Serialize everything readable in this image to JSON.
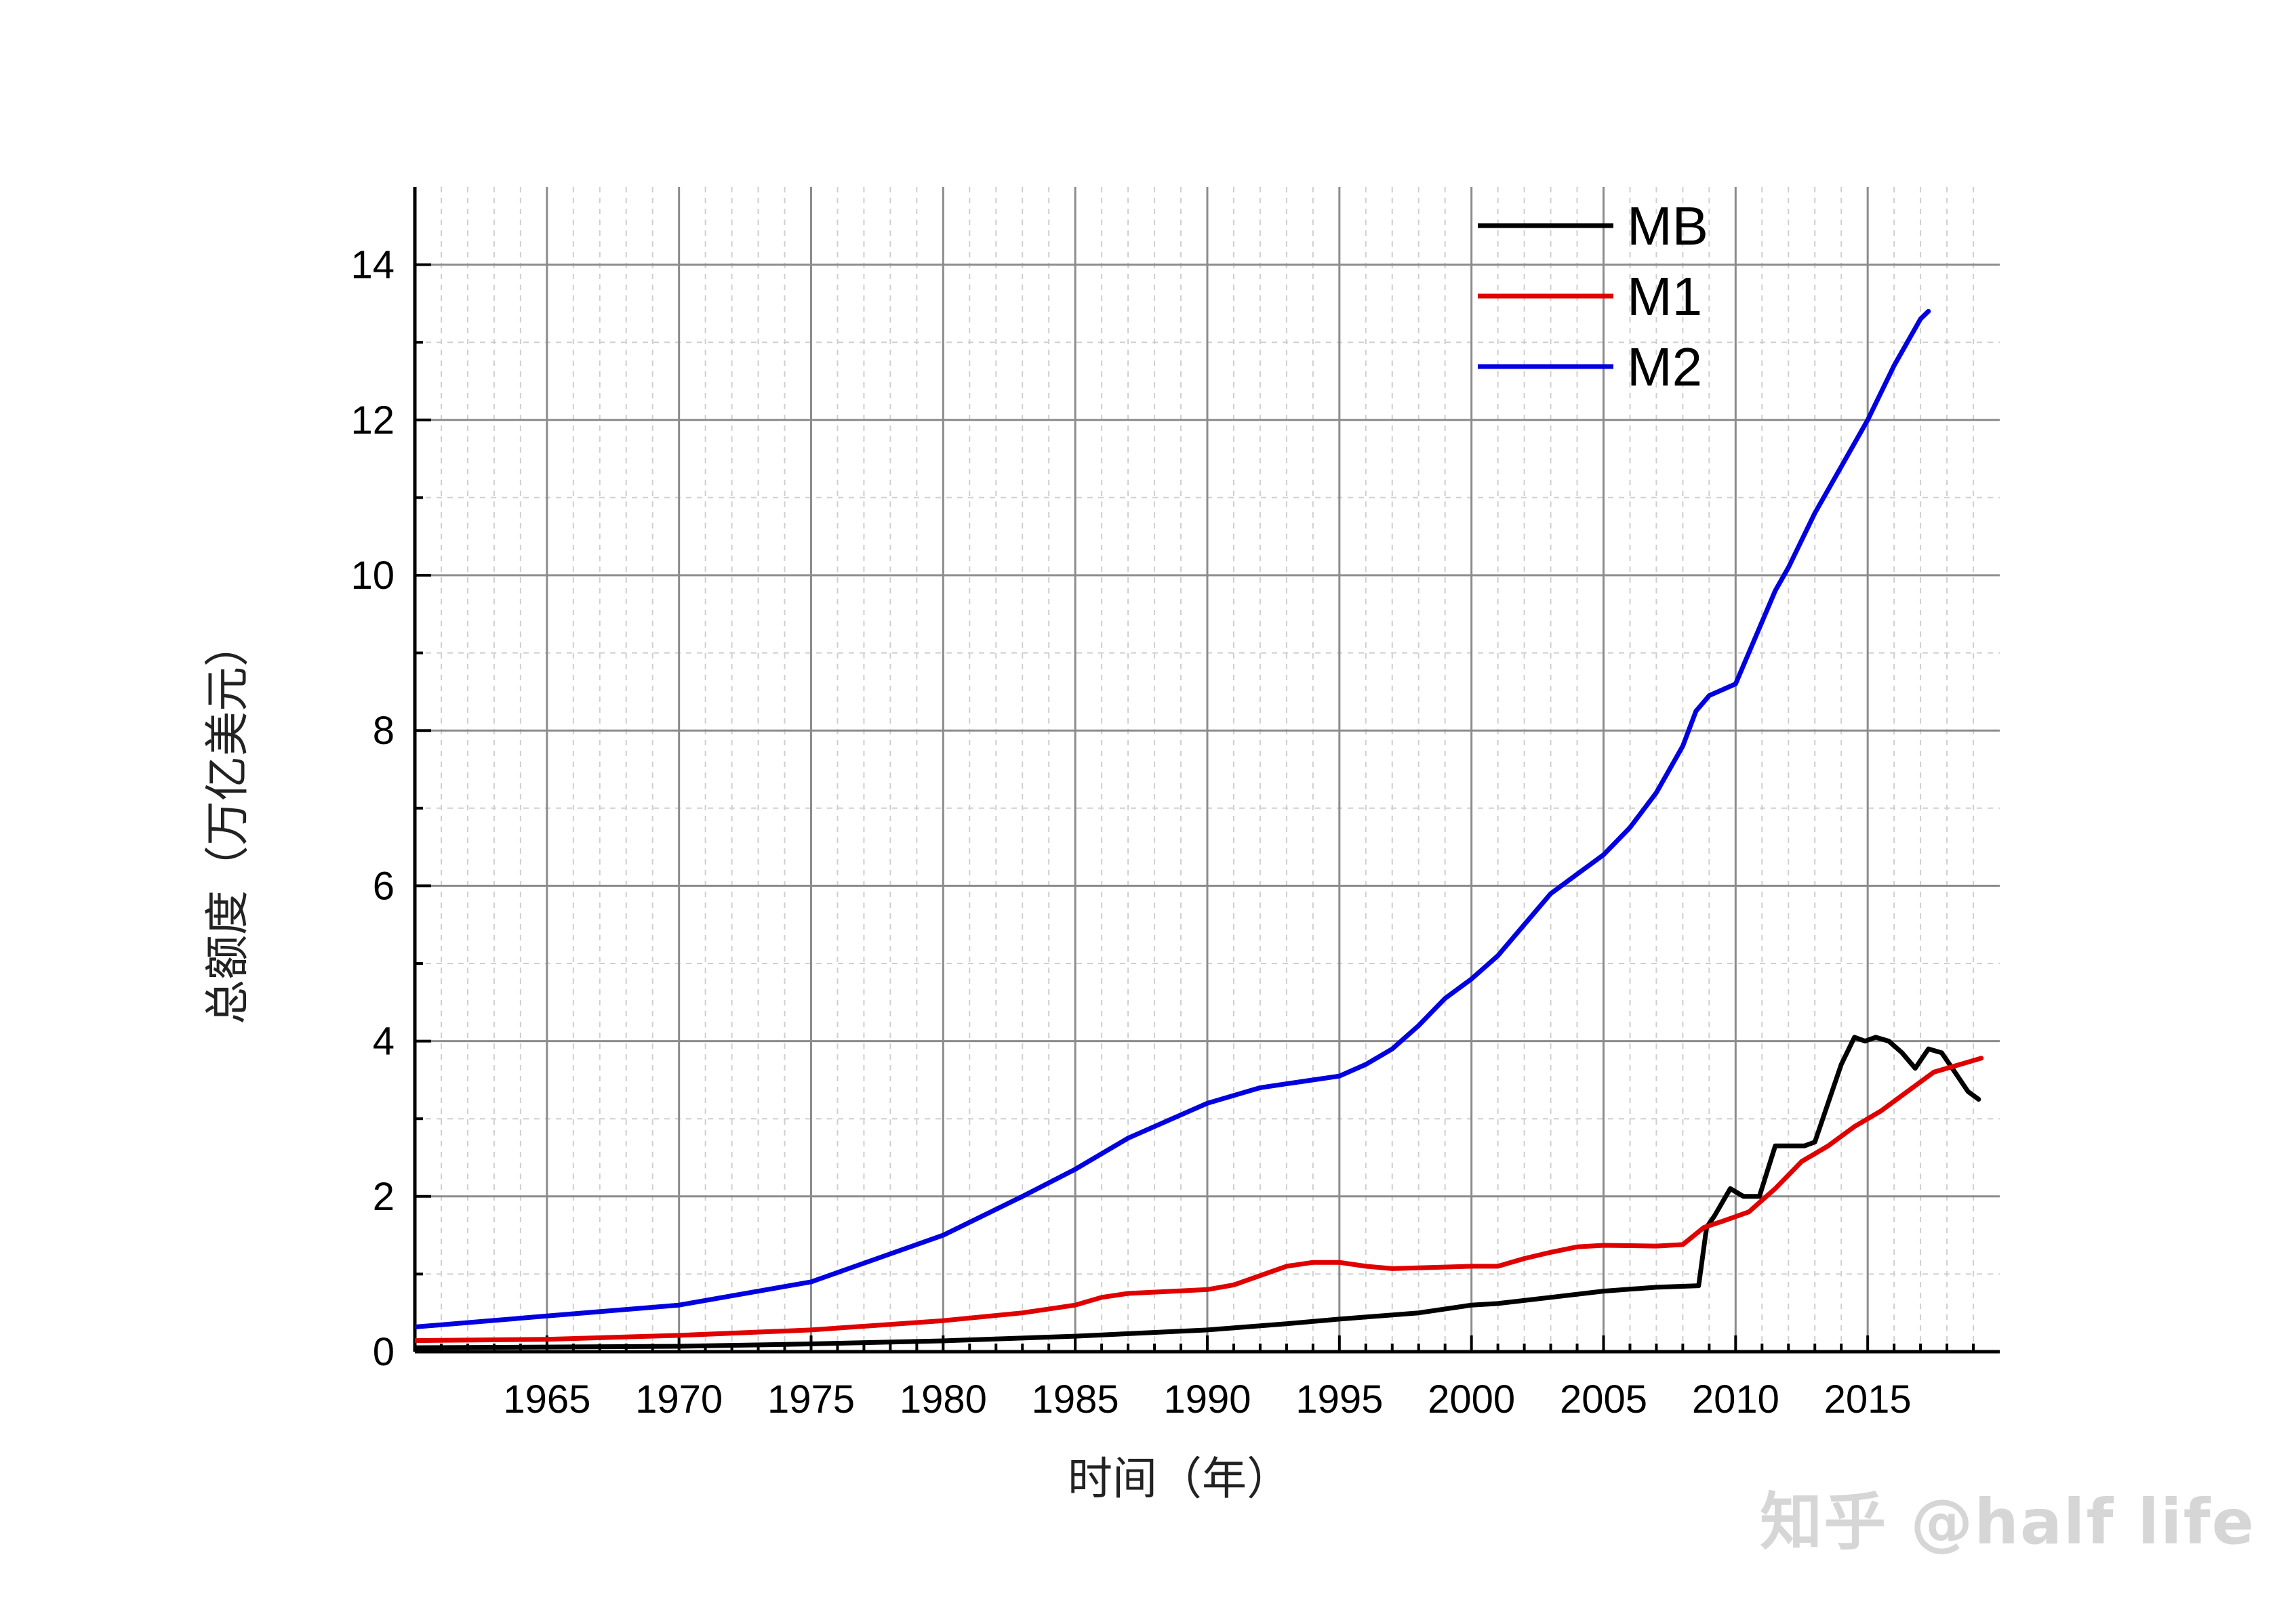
{
  "chart_data": {
    "type": "line",
    "xlabel": "时间（年）",
    "ylabel": "总额度（万亿美元）",
    "xlim": [
      1960,
      2020
    ],
    "ylim": [
      0,
      15
    ],
    "x_ticks": [
      1965,
      1970,
      1975,
      1980,
      1985,
      1990,
      1995,
      2000,
      2005,
      2010,
      2015
    ],
    "y_ticks": [
      0,
      2,
      4,
      6,
      8,
      10,
      12,
      14
    ],
    "grid": true,
    "legend_position": "top-right",
    "series": [
      {
        "name": "MB",
        "color": "#000000",
        "x": [
          1959,
          1965,
          1970,
          1975,
          1980,
          1985,
          1990,
          1993,
          1995,
          1998,
          2000,
          2001,
          2003,
          2005,
          2007,
          2008.6,
          2008.9,
          2009.2,
          2009.8,
          2010.3,
          2010.9,
          2011.5,
          2012,
          2012.6,
          2013,
          2013.6,
          2014,
          2014.5,
          2014.9,
          2015.3,
          2015.8,
          2016.3,
          2016.8,
          2017.3,
          2017.8,
          2018.3,
          2018.8,
          2019.2
        ],
        "y": [
          0.05,
          0.06,
          0.07,
          0.1,
          0.14,
          0.2,
          0.28,
          0.36,
          0.42,
          0.5,
          0.6,
          0.62,
          0.7,
          0.78,
          0.83,
          0.85,
          1.6,
          1.75,
          2.1,
          2.0,
          2.0,
          2.65,
          2.65,
          2.65,
          2.7,
          3.3,
          3.7,
          4.05,
          4.0,
          4.05,
          4.0,
          3.85,
          3.65,
          3.9,
          3.85,
          3.6,
          3.35,
          3.25
        ]
      },
      {
        "name": "M1",
        "color": "#e00000",
        "x": [
          1959,
          1965,
          1970,
          1975,
          1980,
          1983,
          1985,
          1986,
          1987,
          1990,
          1991,
          1992,
          1993,
          1994,
          1995,
          1996,
          1997,
          1998,
          2000,
          2001,
          2002,
          2003,
          2004,
          2005,
          2007,
          2008,
          2008.8,
          2009.5,
          2010.5,
          2011.5,
          2012.5,
          2013.5,
          2014.5,
          2015.5,
          2016.5,
          2017.5,
          2018.5,
          2019.3
        ],
        "y": [
          0.14,
          0.16,
          0.21,
          0.28,
          0.4,
          0.5,
          0.6,
          0.7,
          0.75,
          0.8,
          0.86,
          0.98,
          1.1,
          1.15,
          1.15,
          1.1,
          1.07,
          1.08,
          1.1,
          1.1,
          1.2,
          1.28,
          1.35,
          1.37,
          1.36,
          1.38,
          1.6,
          1.68,
          1.8,
          2.1,
          2.45,
          2.65,
          2.9,
          3.1,
          3.35,
          3.6,
          3.7,
          3.78
        ]
      },
      {
        "name": "M2",
        "color": "#0000e0",
        "x": [
          1959,
          1965,
          1970,
          1975,
          1980,
          1983,
          1985,
          1987,
          1990,
          1992,
          1993,
          1994,
          1995,
          1996,
          1997,
          1998,
          1999,
          2000,
          2001,
          2002,
          2003,
          2004,
          2005,
          2006,
          2007,
          2008,
          2008.5,
          2009,
          2010,
          2011,
          2011.5,
          2012,
          2013,
          2014,
          2015,
          2016,
          2017,
          2017.3
        ],
        "y": [
          0.29,
          0.46,
          0.6,
          0.9,
          1.5,
          2.0,
          2.35,
          2.75,
          3.2,
          3.4,
          3.45,
          3.5,
          3.55,
          3.7,
          3.9,
          4.2,
          4.55,
          4.8,
          5.1,
          5.5,
          5.9,
          6.15,
          6.4,
          6.75,
          7.2,
          7.8,
          8.25,
          8.45,
          8.6,
          9.4,
          9.8,
          10.1,
          10.8,
          11.4,
          12.0,
          12.7,
          13.3,
          13.4
        ]
      }
    ]
  },
  "watermark_text": "知乎 @half life"
}
